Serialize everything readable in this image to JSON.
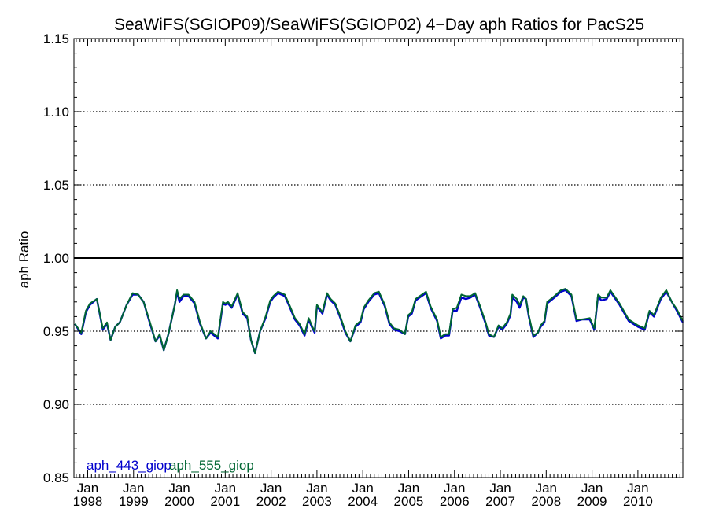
{
  "chart_data": {
    "type": "line",
    "title": "SeaWiFS(SGIOP09)/SeaWiFS(SGIOP02) 4−Day aph Ratios for PacS25",
    "ylabel": "aph Ratio",
    "xlabel": "",
    "ylim": [
      0.85,
      1.15
    ],
    "xlim": [
      1997.7,
      2010.98
    ],
    "grid": "horizontal dotted",
    "reference_line": 1.0,
    "y_ticks": [
      {
        "value": 0.85,
        "label": "0.85"
      },
      {
        "value": 0.9,
        "label": "0.90"
      },
      {
        "value": 0.95,
        "label": "0.95"
      },
      {
        "value": 1.0,
        "label": "1.00"
      },
      {
        "value": 1.05,
        "label": "1.05"
      },
      {
        "value": 1.1,
        "label": "1.10"
      },
      {
        "value": 1.15,
        "label": "1.15"
      }
    ],
    "x_ticks": [
      {
        "value": 1998,
        "month": "Jan",
        "year": "1998"
      },
      {
        "value": 1999,
        "month": "Jan",
        "year": "1999"
      },
      {
        "value": 2000,
        "month": "Jan",
        "year": "2000"
      },
      {
        "value": 2001,
        "month": "Jan",
        "year": "2001"
      },
      {
        "value": 2002,
        "month": "Jan",
        "year": "2002"
      },
      {
        "value": 2003,
        "month": "Jan",
        "year": "2003"
      },
      {
        "value": 2004,
        "month": "Jan",
        "year": "2004"
      },
      {
        "value": 2005,
        "month": "Jan",
        "year": "2005"
      },
      {
        "value": 2006,
        "month": "Jan",
        "year": "2006"
      },
      {
        "value": 2007,
        "month": "Jan",
        "year": "2007"
      },
      {
        "value": 2008,
        "month": "Jan",
        "year": "2008"
      },
      {
        "value": 2009,
        "month": "Jan",
        "year": "2009"
      },
      {
        "value": 2010,
        "month": "Jan",
        "year": "2010"
      }
    ],
    "legend_position": "bottom-left",
    "series": [
      {
        "name": "aph_443_giop",
        "color": "#0000cc",
        "points": [
          [
            1997.72,
            0.955
          ],
          [
            1997.86,
            0.948
          ],
          [
            1997.96,
            0.963
          ],
          [
            1998.05,
            0.968
          ],
          [
            1998.2,
            0.972
          ],
          [
            1998.33,
            0.951
          ],
          [
            1998.42,
            0.955
          ],
          [
            1998.5,
            0.944
          ],
          [
            1998.6,
            0.953
          ],
          [
            1998.7,
            0.956
          ],
          [
            1998.85,
            0.968
          ],
          [
            1998.98,
            0.975
          ],
          [
            1999.1,
            0.975
          ],
          [
            1999.22,
            0.97
          ],
          [
            1999.35,
            0.956
          ],
          [
            1999.48,
            0.943
          ],
          [
            1999.57,
            0.947
          ],
          [
            1999.66,
            0.937
          ],
          [
            1999.76,
            0.948
          ],
          [
            1999.9,
            0.968
          ],
          [
            1999.95,
            0.977
          ],
          [
            2000.0,
            0.97
          ],
          [
            2000.09,
            0.974
          ],
          [
            2000.2,
            0.974
          ],
          [
            2000.33,
            0.969
          ],
          [
            2000.45,
            0.955
          ],
          [
            2000.58,
            0.945
          ],
          [
            2000.68,
            0.949
          ],
          [
            2000.84,
            0.945
          ],
          [
            2000.95,
            0.969
          ],
          [
            2001.0,
            0.968
          ],
          [
            2001.06,
            0.969
          ],
          [
            2001.14,
            0.966
          ],
          [
            2001.27,
            0.975
          ],
          [
            2001.38,
            0.962
          ],
          [
            2001.48,
            0.959
          ],
          [
            2001.56,
            0.944
          ],
          [
            2001.65,
            0.935
          ],
          [
            2001.76,
            0.95
          ],
          [
            2001.88,
            0.959
          ],
          [
            2001.98,
            0.97
          ],
          [
            2002.05,
            0.973
          ],
          [
            2002.15,
            0.976
          ],
          [
            2002.3,
            0.974
          ],
          [
            2002.4,
            0.967
          ],
          [
            2002.52,
            0.958
          ],
          [
            2002.62,
            0.954
          ],
          [
            2002.73,
            0.947
          ],
          [
            2002.82,
            0.958
          ],
          [
            2002.9,
            0.952
          ],
          [
            2002.95,
            0.949
          ],
          [
            2003.0,
            0.967
          ],
          [
            2003.12,
            0.962
          ],
          [
            2003.22,
            0.975
          ],
          [
            2003.3,
            0.971
          ],
          [
            2003.4,
            0.968
          ],
          [
            2003.5,
            0.96
          ],
          [
            2003.62,
            0.949
          ],
          [
            2003.73,
            0.943
          ],
          [
            2003.84,
            0.953
          ],
          [
            2003.95,
            0.956
          ],
          [
            2004.02,
            0.965
          ],
          [
            2004.12,
            0.97
          ],
          [
            2004.25,
            0.975
          ],
          [
            2004.35,
            0.976
          ],
          [
            2004.48,
            0.967
          ],
          [
            2004.58,
            0.955
          ],
          [
            2004.68,
            0.951
          ],
          [
            2004.8,
            0.95
          ],
          [
            2004.92,
            0.948
          ],
          [
            2004.99,
            0.96
          ],
          [
            2005.07,
            0.962
          ],
          [
            2005.15,
            0.971
          ],
          [
            2005.24,
            0.973
          ],
          [
            2005.38,
            0.976
          ],
          [
            2005.48,
            0.966
          ],
          [
            2005.62,
            0.957
          ],
          [
            2005.7,
            0.945
          ],
          [
            2005.8,
            0.947
          ],
          [
            2005.88,
            0.947
          ],
          [
            2005.96,
            0.964
          ],
          [
            2006.05,
            0.964
          ],
          [
            2006.15,
            0.973
          ],
          [
            2006.25,
            0.972
          ],
          [
            2006.35,
            0.973
          ],
          [
            2006.45,
            0.975
          ],
          [
            2006.56,
            0.966
          ],
          [
            2006.68,
            0.955
          ],
          [
            2006.75,
            0.947
          ],
          [
            2006.86,
            0.946
          ],
          [
            2006.96,
            0.953
          ],
          [
            2007.04,
            0.951
          ],
          [
            2007.14,
            0.955
          ],
          [
            2007.22,
            0.961
          ],
          [
            2007.26,
            0.973
          ],
          [
            2007.36,
            0.97
          ],
          [
            2007.42,
            0.966
          ],
          [
            2007.5,
            0.973
          ],
          [
            2007.56,
            0.972
          ],
          [
            2007.62,
            0.96
          ],
          [
            2007.72,
            0.946
          ],
          [
            2007.82,
            0.949
          ],
          [
            2007.88,
            0.953
          ],
          [
            2007.96,
            0.956
          ],
          [
            2008.02,
            0.969
          ],
          [
            2008.18,
            0.973
          ],
          [
            2008.32,
            0.977
          ],
          [
            2008.42,
            0.978
          ],
          [
            2008.55,
            0.974
          ],
          [
            2008.66,
            0.957
          ],
          [
            2008.78,
            0.958
          ],
          [
            2008.95,
            0.958
          ],
          [
            2009.05,
            0.951
          ],
          [
            2009.13,
            0.974
          ],
          [
            2009.2,
            0.971
          ],
          [
            2009.32,
            0.972
          ],
          [
            2009.4,
            0.977
          ],
          [
            2009.6,
            0.968
          ],
          [
            2009.8,
            0.957
          ],
          [
            2010.0,
            0.953
          ],
          [
            2010.15,
            0.951
          ],
          [
            2010.25,
            0.963
          ],
          [
            2010.35,
            0.96
          ],
          [
            2010.5,
            0.972
          ],
          [
            2010.62,
            0.977
          ],
          [
            2010.74,
            0.97
          ],
          [
            2010.85,
            0.964
          ],
          [
            2010.98,
            0.956
          ]
        ]
      },
      {
        "name": "aph_555_giop",
        "color": "#006633",
        "points": [
          [
            1997.72,
            0.955
          ],
          [
            1997.86,
            0.949
          ],
          [
            1997.96,
            0.964
          ],
          [
            1998.05,
            0.969
          ],
          [
            1998.2,
            0.972
          ],
          [
            1998.33,
            0.952
          ],
          [
            1998.42,
            0.956
          ],
          [
            1998.5,
            0.944
          ],
          [
            1998.6,
            0.953
          ],
          [
            1998.7,
            0.956
          ],
          [
            1998.85,
            0.968
          ],
          [
            1998.98,
            0.976
          ],
          [
            1999.1,
            0.975
          ],
          [
            1999.22,
            0.97
          ],
          [
            1999.35,
            0.957
          ],
          [
            1999.48,
            0.943
          ],
          [
            1999.57,
            0.948
          ],
          [
            1999.66,
            0.937
          ],
          [
            1999.76,
            0.948
          ],
          [
            1999.9,
            0.968
          ],
          [
            1999.95,
            0.978
          ],
          [
            2000.0,
            0.972
          ],
          [
            2000.09,
            0.975
          ],
          [
            2000.2,
            0.975
          ],
          [
            2000.33,
            0.97
          ],
          [
            2000.45,
            0.956
          ],
          [
            2000.58,
            0.945
          ],
          [
            2000.68,
            0.95
          ],
          [
            2000.84,
            0.946
          ],
          [
            2000.95,
            0.97
          ],
          [
            2001.0,
            0.969
          ],
          [
            2001.06,
            0.97
          ],
          [
            2001.14,
            0.967
          ],
          [
            2001.27,
            0.976
          ],
          [
            2001.38,
            0.963
          ],
          [
            2001.48,
            0.96
          ],
          [
            2001.56,
            0.944
          ],
          [
            2001.65,
            0.935
          ],
          [
            2001.76,
            0.95
          ],
          [
            2001.88,
            0.96
          ],
          [
            2001.98,
            0.971
          ],
          [
            2002.05,
            0.974
          ],
          [
            2002.15,
            0.977
          ],
          [
            2002.3,
            0.975
          ],
          [
            2002.4,
            0.968
          ],
          [
            2002.52,
            0.959
          ],
          [
            2002.62,
            0.955
          ],
          [
            2002.73,
            0.948
          ],
          [
            2002.82,
            0.959
          ],
          [
            2002.9,
            0.953
          ],
          [
            2002.95,
            0.95
          ],
          [
            2003.0,
            0.968
          ],
          [
            2003.12,
            0.963
          ],
          [
            2003.22,
            0.976
          ],
          [
            2003.3,
            0.972
          ],
          [
            2003.4,
            0.969
          ],
          [
            2003.5,
            0.961
          ],
          [
            2003.62,
            0.95
          ],
          [
            2003.73,
            0.943
          ],
          [
            2003.84,
            0.954
          ],
          [
            2003.95,
            0.957
          ],
          [
            2004.02,
            0.966
          ],
          [
            2004.12,
            0.971
          ],
          [
            2004.25,
            0.976
          ],
          [
            2004.35,
            0.977
          ],
          [
            2004.48,
            0.968
          ],
          [
            2004.58,
            0.956
          ],
          [
            2004.68,
            0.952
          ],
          [
            2004.8,
            0.951
          ],
          [
            2004.92,
            0.948
          ],
          [
            2004.99,
            0.961
          ],
          [
            2005.07,
            0.963
          ],
          [
            2005.15,
            0.972
          ],
          [
            2005.24,
            0.974
          ],
          [
            2005.38,
            0.977
          ],
          [
            2005.48,
            0.967
          ],
          [
            2005.62,
            0.958
          ],
          [
            2005.7,
            0.946
          ],
          [
            2005.8,
            0.948
          ],
          [
            2005.88,
            0.948
          ],
          [
            2005.96,
            0.965
          ],
          [
            2006.05,
            0.966
          ],
          [
            2006.15,
            0.975
          ],
          [
            2006.25,
            0.974
          ],
          [
            2006.35,
            0.974
          ],
          [
            2006.45,
            0.976
          ],
          [
            2006.56,
            0.967
          ],
          [
            2006.68,
            0.956
          ],
          [
            2006.75,
            0.948
          ],
          [
            2006.86,
            0.946
          ],
          [
            2006.96,
            0.954
          ],
          [
            2007.04,
            0.952
          ],
          [
            2007.14,
            0.956
          ],
          [
            2007.22,
            0.962
          ],
          [
            2007.26,
            0.975
          ],
          [
            2007.36,
            0.972
          ],
          [
            2007.42,
            0.968
          ],
          [
            2007.5,
            0.974
          ],
          [
            2007.56,
            0.972
          ],
          [
            2007.62,
            0.961
          ],
          [
            2007.72,
            0.947
          ],
          [
            2007.82,
            0.949
          ],
          [
            2007.88,
            0.954
          ],
          [
            2007.96,
            0.957
          ],
          [
            2008.02,
            0.97
          ],
          [
            2008.18,
            0.974
          ],
          [
            2008.32,
            0.978
          ],
          [
            2008.42,
            0.979
          ],
          [
            2008.55,
            0.975
          ],
          [
            2008.66,
            0.958
          ],
          [
            2008.78,
            0.958
          ],
          [
            2008.95,
            0.959
          ],
          [
            2009.05,
            0.952
          ],
          [
            2009.13,
            0.975
          ],
          [
            2009.2,
            0.973
          ],
          [
            2009.32,
            0.973
          ],
          [
            2009.4,
            0.978
          ],
          [
            2009.6,
            0.969
          ],
          [
            2009.8,
            0.958
          ],
          [
            2010.0,
            0.954
          ],
          [
            2010.15,
            0.952
          ],
          [
            2010.25,
            0.964
          ],
          [
            2010.35,
            0.961
          ],
          [
            2010.5,
            0.973
          ],
          [
            2010.62,
            0.978
          ],
          [
            2010.74,
            0.97
          ],
          [
            2010.85,
            0.965
          ],
          [
            2010.98,
            0.957
          ]
        ]
      }
    ]
  }
}
